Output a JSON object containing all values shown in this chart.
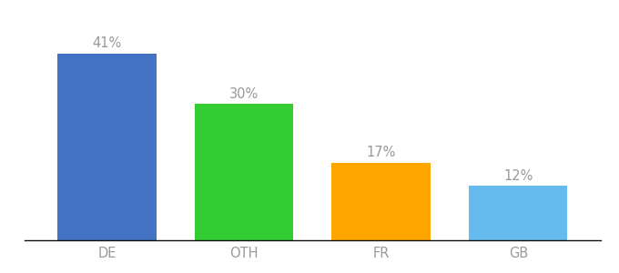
{
  "categories": [
    "DE",
    "OTH",
    "FR",
    "GB"
  ],
  "values": [
    41,
    30,
    17,
    12
  ],
  "labels": [
    "41%",
    "30%",
    "17%",
    "12%"
  ],
  "bar_colors": [
    "#4472C4",
    "#33CC33",
    "#FFA500",
    "#66BBEE"
  ],
  "background_color": "#ffffff",
  "ylim": [
    0,
    48
  ],
  "bar_width": 0.72,
  "label_fontsize": 10.5,
  "tick_fontsize": 10.5,
  "label_color": "#999999",
  "tick_color": "#999999"
}
